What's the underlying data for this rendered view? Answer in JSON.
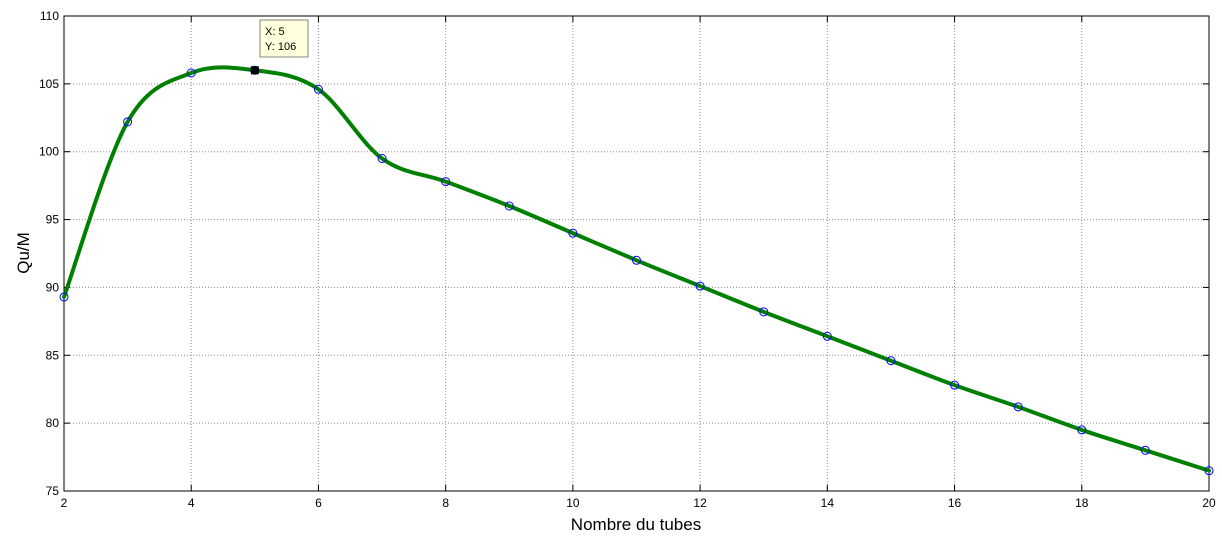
{
  "chart_data": {
    "type": "line",
    "xlabel": "Nombre du tubes",
    "ylabel": "Qu/M",
    "xlim": [
      2,
      20
    ],
    "ylim": [
      75,
      110
    ],
    "x_ticks": [
      2,
      4,
      6,
      8,
      10,
      12,
      14,
      16,
      18,
      20
    ],
    "y_ticks": [
      75,
      80,
      85,
      90,
      95,
      100,
      105,
      110
    ],
    "grid": true,
    "series": [
      {
        "color": "#008000",
        "marker": "circle",
        "marker_color": "#0000ff",
        "x": [
          2,
          3,
          4,
          5,
          6,
          7,
          8,
          9,
          10,
          11,
          12,
          13,
          14,
          15,
          16,
          17,
          18,
          19,
          20
        ],
        "y": [
          89.3,
          102.2,
          105.8,
          106.0,
          104.6,
          99.5,
          97.8,
          96.0,
          94.0,
          92.0,
          90.1,
          88.2,
          86.4,
          84.6,
          82.8,
          81.2,
          79.5,
          78.0,
          76.5
        ]
      }
    ],
    "data_tip": {
      "x_text": "X: 5",
      "y_text": "Y: 106",
      "x": 5,
      "y": 106
    }
  }
}
